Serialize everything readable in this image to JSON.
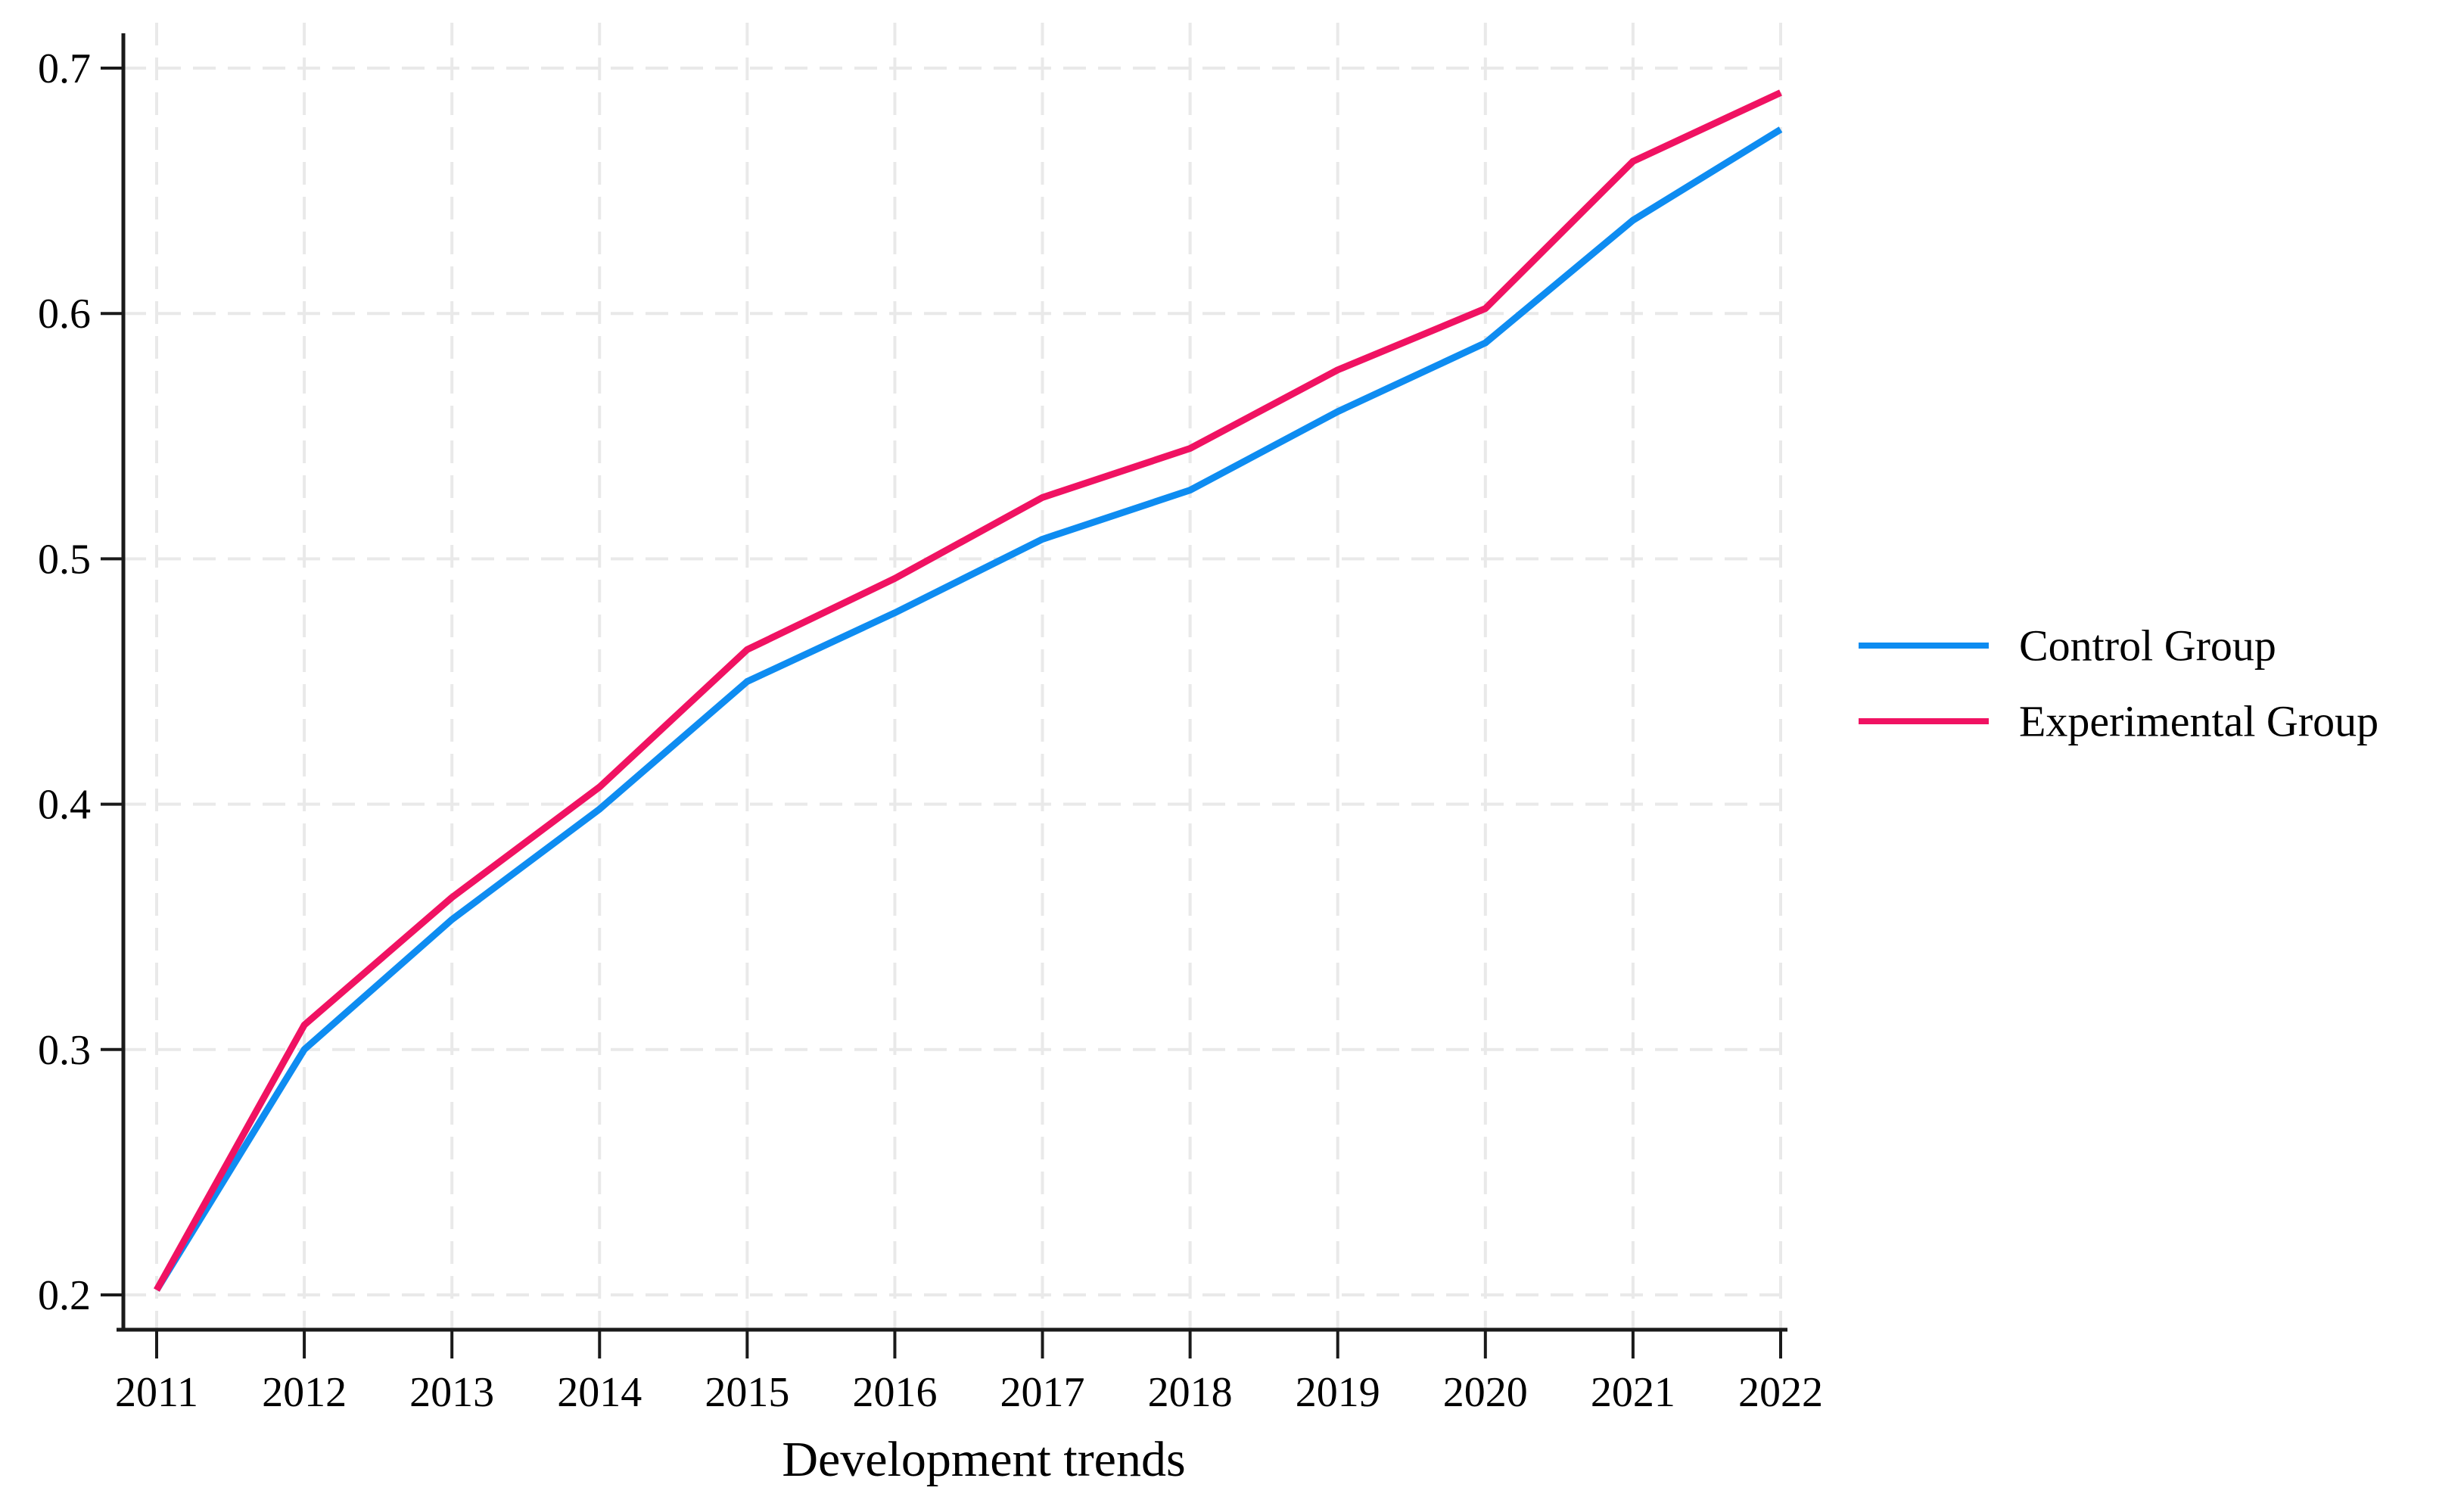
{
  "chart_data": {
    "type": "line",
    "x": [
      2011,
      2012,
      2013,
      2014,
      2015,
      2016,
      2017,
      2018,
      2019,
      2020,
      2021,
      2022
    ],
    "series": [
      {
        "name": "Control Group",
        "color": "#0e8cf1",
        "values": [
          0.202,
          0.3,
          0.353,
          0.398,
          0.45,
          0.478,
          0.508,
          0.528,
          0.56,
          0.588,
          0.638,
          0.675
        ]
      },
      {
        "name": "Experimental Group",
        "color": "#f01262",
        "values": [
          0.202,
          0.31,
          0.362,
          0.407,
          0.463,
          0.492,
          0.525,
          0.545,
          0.577,
          0.602,
          0.662,
          0.69
        ]
      }
    ],
    "xlabel": "Development trends",
    "ylim": [
      0.2,
      0.7
    ],
    "yticks": [
      0.2,
      0.3,
      0.4,
      0.5,
      0.6,
      0.7
    ],
    "ytick_labels": [
      "0.2",
      "0.3",
      "0.4",
      "0.5",
      "0.6",
      "0.7"
    ],
    "xtick_labels": [
      "2011",
      "2012",
      "2013",
      "2014",
      "2015",
      "2016",
      "2017",
      "2018",
      "2019",
      "2020",
      "2021",
      "2022"
    ],
    "grid": "dashed-both-axes",
    "legend_position": "right-outside-middle",
    "colors": {
      "axis": "#1a1a1a",
      "grid": "#e9e9e9",
      "text": "#000000",
      "background": "#ffffff"
    }
  }
}
